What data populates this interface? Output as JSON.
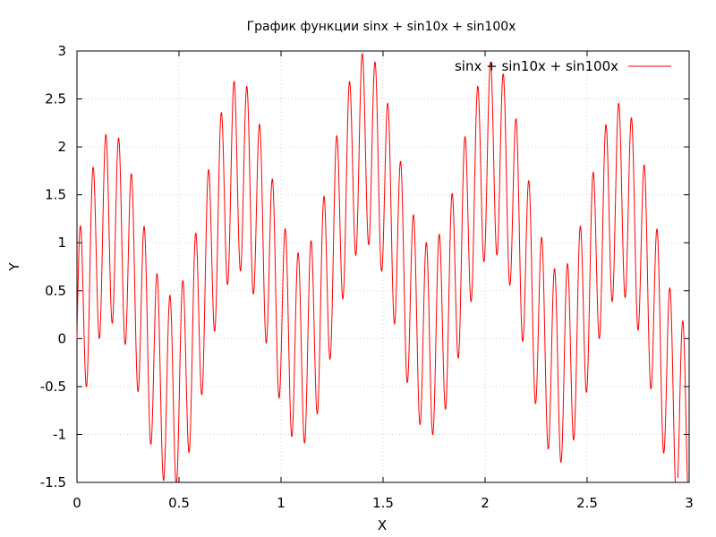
{
  "chart_data": {
    "type": "line",
    "title": "График функции sinx + sin10x + sin100x",
    "xlabel": "X",
    "ylabel": "Y",
    "xlim": [
      0,
      3
    ],
    "ylim": [
      -1.5,
      3
    ],
    "xticks": [
      0,
      0.5,
      1,
      1.5,
      2,
      2.5,
      3
    ],
    "xtick_labels": [
      "0",
      "0.5",
      "1",
      "1.5",
      "2",
      "2.5",
      "3"
    ],
    "yticks": [
      -1.5,
      -1,
      -0.5,
      0,
      0.5,
      1,
      1.5,
      2,
      2.5,
      3
    ],
    "ytick_labels": [
      "-1.5",
      "-1",
      "-0.5",
      "0",
      "0.5",
      "1",
      "1.5",
      "2",
      "2.5",
      "3"
    ],
    "grid": true,
    "legend_position": "top-right",
    "series": [
      {
        "name": "sinx + sin10x + sin100x",
        "formula": "sin(x) + sin(10x) + sin(100x)",
        "color": "#ff0000",
        "x_range": [
          0,
          3
        ]
      }
    ]
  }
}
